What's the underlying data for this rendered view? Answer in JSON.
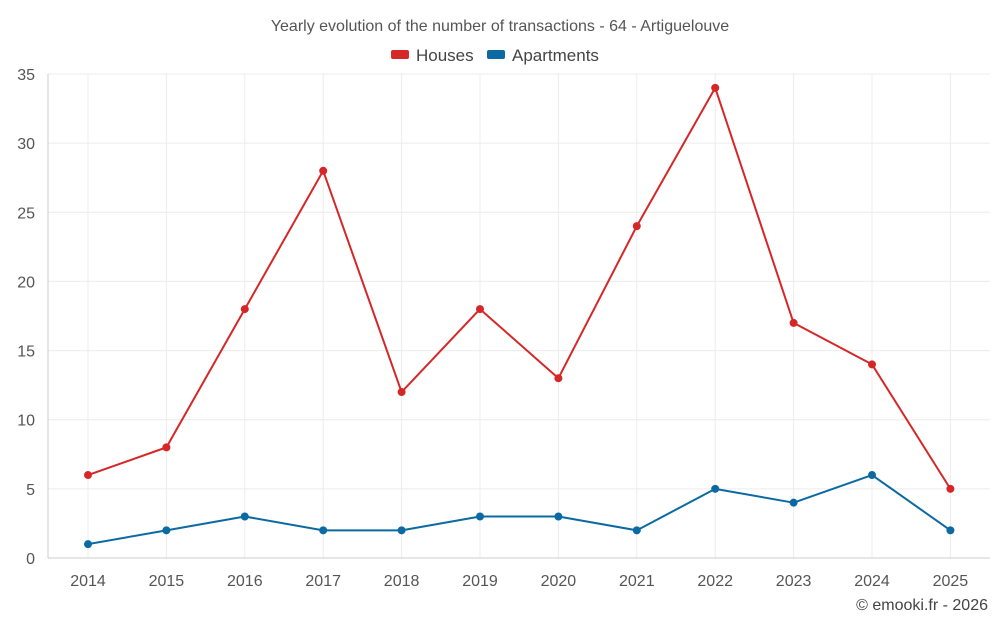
{
  "chart_data": {
    "type": "line",
    "title": "Yearly evolution of the number of transactions - 64 - Artiguelouve",
    "categories": [
      "2014",
      "2015",
      "2016",
      "2017",
      "2018",
      "2019",
      "2020",
      "2021",
      "2022",
      "2023",
      "2024",
      "2025"
    ],
    "series": [
      {
        "name": "Houses",
        "color": "#d62728",
        "values": [
          6,
          8,
          18,
          28,
          12,
          18,
          13,
          24,
          34,
          17,
          14,
          5
        ]
      },
      {
        "name": "Apartments",
        "color": "#0b6aa2",
        "values": [
          1,
          2,
          3,
          2,
          2,
          3,
          3,
          2,
          5,
          4,
          6,
          2
        ]
      }
    ],
    "ylim": [
      0,
      35
    ],
    "yticks": [
      0,
      5,
      10,
      15,
      20,
      25,
      30,
      35
    ],
    "grid": true,
    "legend": "top-center",
    "xlabel": "",
    "ylabel": ""
  },
  "credit": "© emooki.fr - 2026"
}
